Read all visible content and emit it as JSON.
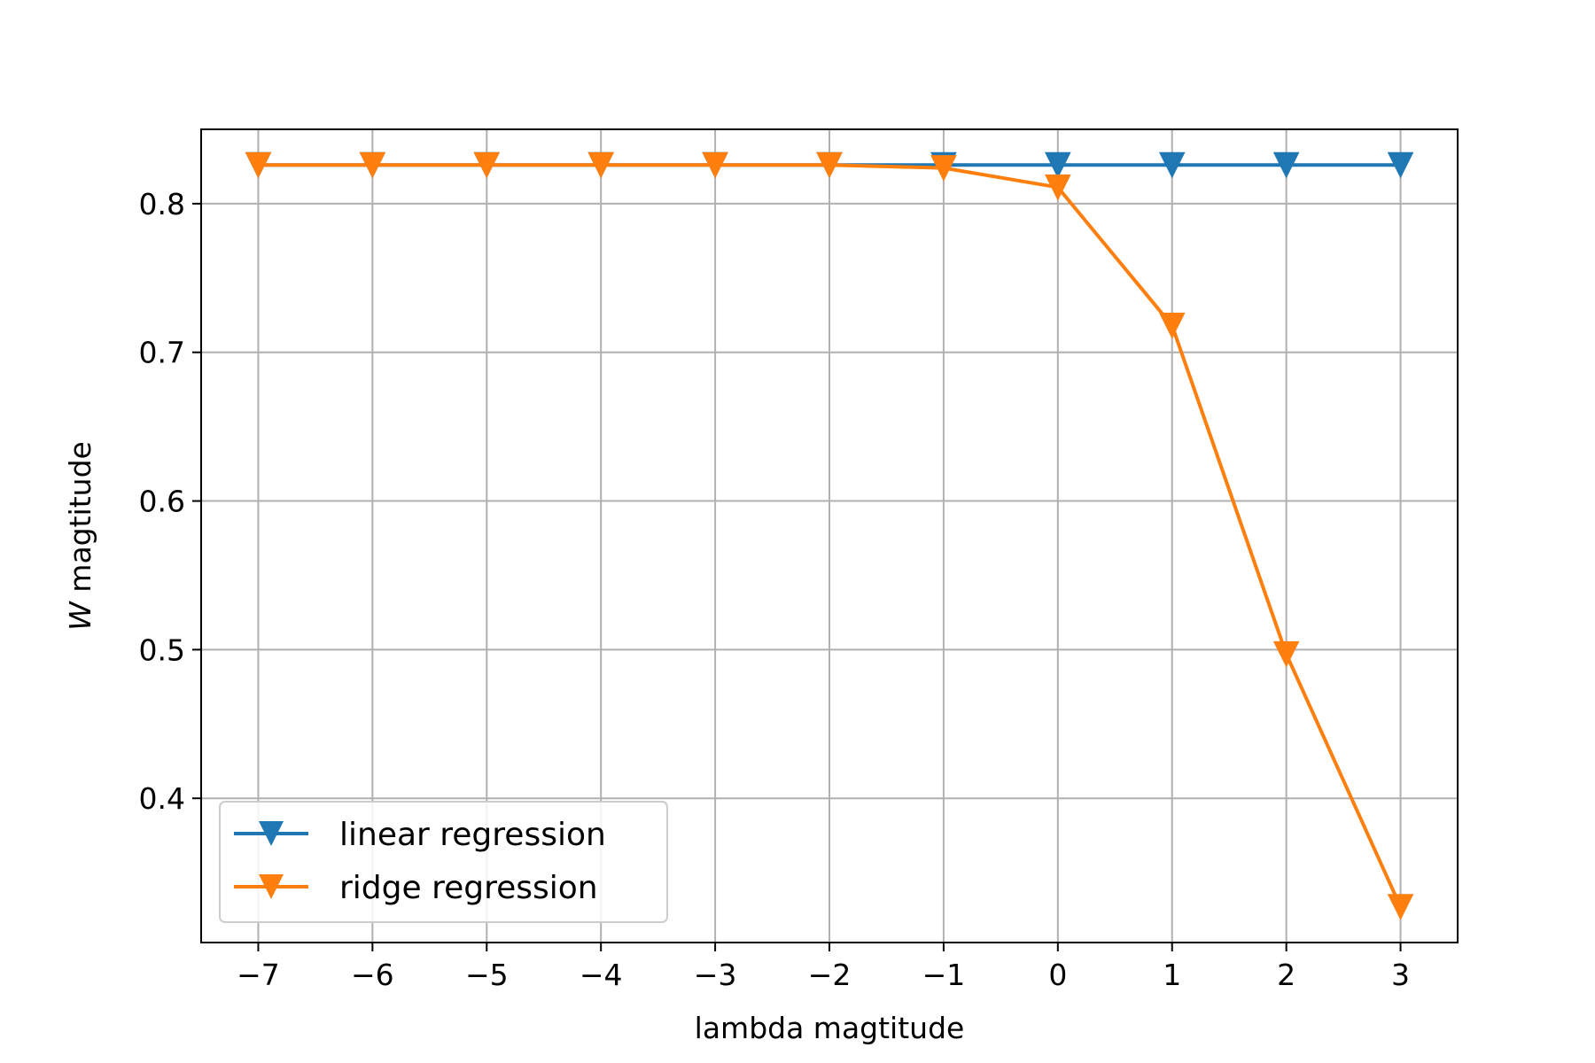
{
  "chart_data": {
    "type": "line",
    "xlabel": "lambda magtitude",
    "ylabel_symbol": "W",
    "ylabel_rest": " magtitude",
    "xlim": [
      -7.5,
      7.5
    ],
    "ylim": [
      0.303,
      0.85
    ],
    "x_ticks": [
      -7,
      -6,
      -5,
      -4,
      -3,
      -2,
      -1,
      0,
      1,
      2,
      3
    ],
    "x_tick_labels": [
      "−7",
      "−6",
      "−5",
      "−4",
      "−3",
      "−2",
      "−1",
      "0",
      "1",
      "2",
      "3"
    ],
    "y_ticks": [
      0.4,
      0.5,
      0.6,
      0.7,
      0.8
    ],
    "y_tick_labels": [
      "0.4",
      "0.5",
      "0.6",
      "0.7",
      "0.8"
    ],
    "grid": true,
    "legend_position": "lower-left",
    "x": [
      -7,
      -6,
      -5,
      -4,
      -3,
      -2,
      -1,
      0,
      1,
      2,
      3
    ],
    "series": [
      {
        "name": "linear regression",
        "color": "#1f77b4",
        "marker": "triangle-down",
        "values": [
          0.826,
          0.826,
          0.826,
          0.826,
          0.826,
          0.826,
          0.826,
          0.826,
          0.826,
          0.826,
          0.826
        ]
      },
      {
        "name": "ridge regression",
        "color": "#ff7f0e",
        "marker": "triangle-down",
        "values": [
          0.826,
          0.826,
          0.826,
          0.826,
          0.826,
          0.826,
          0.824,
          0.811,
          0.718,
          0.497,
          0.327
        ]
      }
    ]
  }
}
